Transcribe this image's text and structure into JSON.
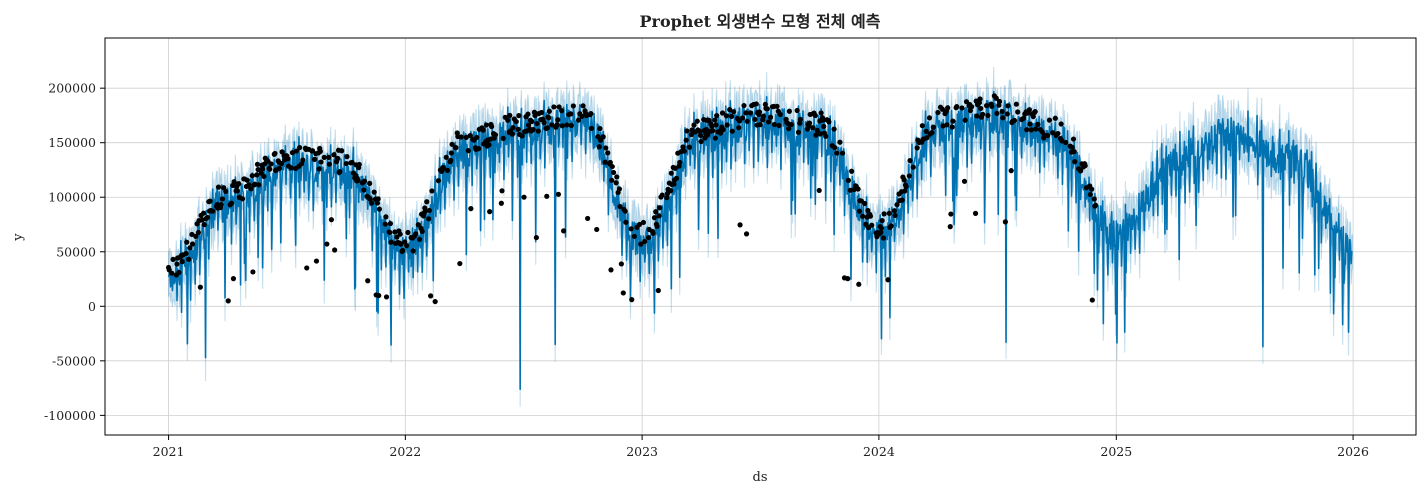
{
  "chart_data": {
    "type": "line",
    "title": "Prophet 외생변수 모형 전체 예측",
    "xlabel": "ds",
    "ylabel": "y",
    "xlim": [
      "2020-09-25",
      "2026-04-08"
    ],
    "ylim": [
      -118000,
      246000
    ],
    "x_ticks": [
      "2021-01-01",
      "2022-01-01",
      "2023-01-01",
      "2024-01-01",
      "2025-01-01",
      "2026-01-01"
    ],
    "x_tick_labels": [
      "2021",
      "2022",
      "2023",
      "2024",
      "2025",
      "2026"
    ],
    "y_ticks": [
      -100000,
      -50000,
      0,
      50000,
      100000,
      150000,
      200000
    ],
    "y_tick_labels": [
      "-100000",
      "-50000",
      "0",
      "50000",
      "100000",
      "150000",
      "200000"
    ],
    "grid": true,
    "observed_range": [
      "2021-01-01",
      "2024-11-30"
    ],
    "forecast_range": [
      "2021-01-01",
      "2025-12-31"
    ],
    "series": [
      {
        "name": "",
        "kind": "observed points",
        "color": "#000000"
      },
      {
        "name": "",
        "kind": "forecast line",
        "color": "#0072B2"
      },
      {
        "name": "",
        "kind": "uncertainty interval",
        "color": "#0072B2",
        "opacity": 0.2
      }
    ],
    "forecast_envelope": {
      "x": [
        "2021-01-01",
        "2021-04-01",
        "2021-07-01",
        "2021-10-01",
        "2022-01-01",
        "2022-04-01",
        "2022-07-01",
        "2022-10-01",
        "2023-01-01",
        "2023-04-01",
        "2023-07-01",
        "2023-10-01",
        "2024-01-01",
        "2024-04-01",
        "2024-07-01",
        "2024-10-01",
        "2025-01-01",
        "2025-04-01",
        "2025-07-01",
        "2025-10-01",
        "2026-01-01"
      ],
      "typical": [
        22000,
        90000,
        125000,
        120000,
        45000,
        140000,
        155000,
        165000,
        55000,
        150000,
        165000,
        155000,
        60000,
        160000,
        170000,
        150000,
        60000,
        130000,
        155000,
        130000,
        45000
      ]
    },
    "notable_dips": [
      {
        "x": "2021-02-27",
        "y": -47000
      },
      {
        "x": "2022-06-27",
        "y": -76000
      },
      {
        "x": "2022-08-20",
        "y": -35000
      },
      {
        "x": "2024-07-15",
        "y": -33000
      },
      {
        "x": "2025-08-15",
        "y": -37000
      }
    ]
  }
}
